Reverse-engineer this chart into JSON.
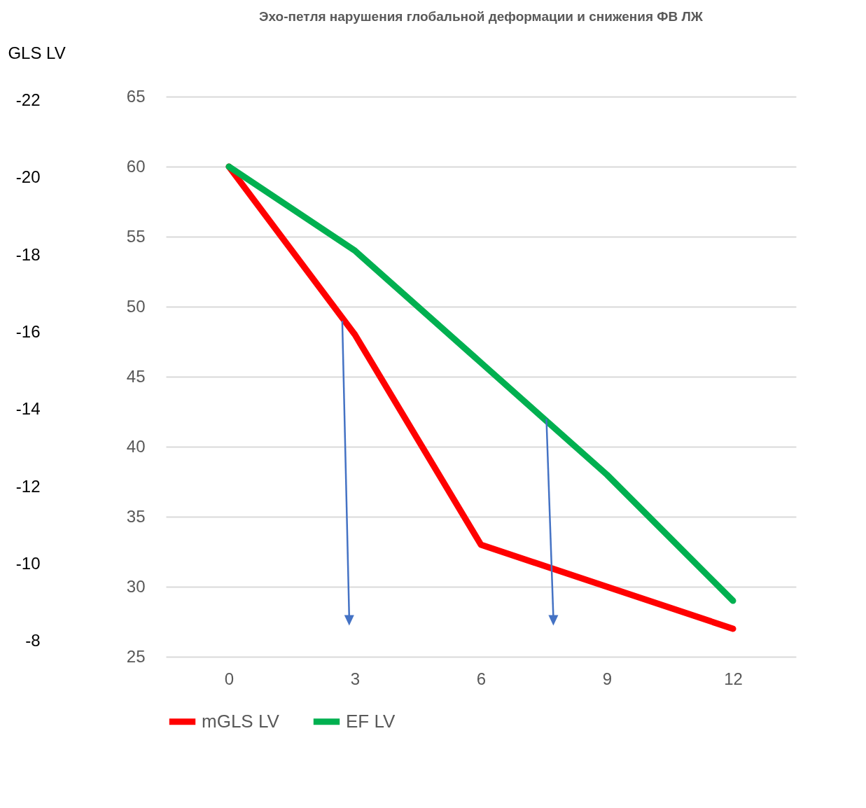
{
  "chart_data": {
    "type": "line",
    "title": "Эхо-петля нарушения глобальной деформации и снижения ФВ ЛЖ",
    "categories": [
      "0",
      "3",
      "6",
      "9",
      "12"
    ],
    "series": [
      {
        "name": "mGLS LV",
        "color": "#ff0000",
        "values": [
          60,
          48,
          33,
          30,
          27
        ]
      },
      {
        "name": "EF LV",
        "color": "#00b050",
        "values": [
          60,
          54,
          46,
          38,
          29
        ]
      }
    ],
    "ylim": [
      25,
      65
    ],
    "yticks": [
      25,
      30,
      35,
      40,
      45,
      50,
      55,
      60,
      65
    ],
    "y2label": "GLS LV",
    "y2lim": [
      -7.6,
      -22.1
    ],
    "y2ticks": [
      -8,
      -10,
      -12,
      -14,
      -16,
      -18,
      -20,
      -22
    ],
    "grid": "y",
    "legend": "bottom"
  }
}
